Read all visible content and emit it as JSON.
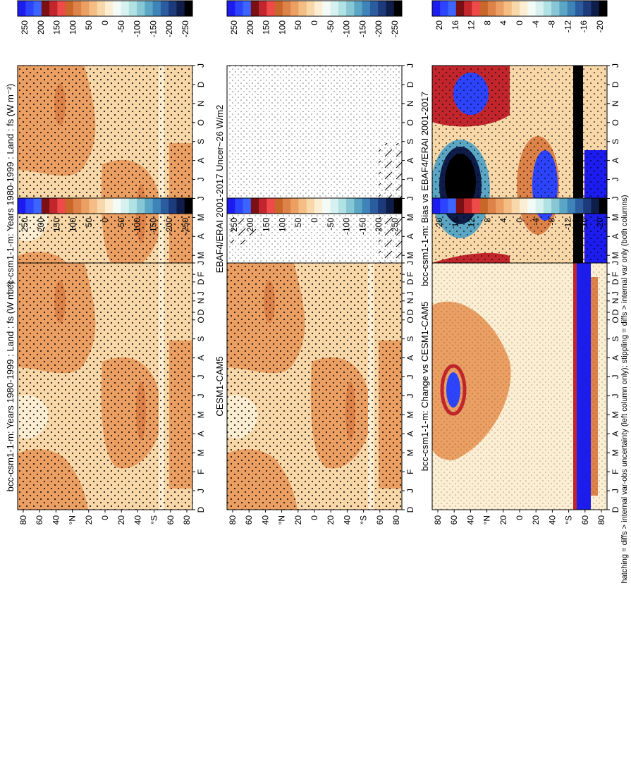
{
  "chart_data": {
    "type": "heatmap",
    "orientation_note": "figure rotated 90 degrees counter-clockwise",
    "month_ticks": [
      "D",
      "J",
      "F",
      "M",
      "A",
      "M",
      "J",
      "J",
      "A",
      "S",
      "O",
      "N",
      "D",
      "J"
    ],
    "lat_ticks": [
      "80",
      "60",
      "40",
      "°N",
      "20",
      "0",
      "20",
      "40",
      "°S",
      "60",
      "80"
    ],
    "footer": "hatching = diffs > internal var-obs uncertainty (left column only); stippling = diffs > internal var only (both columns)",
    "panels": [
      {
        "id": "obs-main",
        "title": "bcc-csm1-1-m: Years 1980-1999 : Land : fs (W m⁻²)",
        "kind": "flux",
        "colorbar": "flux"
      },
      {
        "id": "ref-main",
        "title": "bcc-csm1-1-m: Years 1980-1999 : Land : fs (W m⁻²)",
        "kind": "flux",
        "colorbar": "flux"
      },
      {
        "id": "obs-unc",
        "title": "EBAF4/ERAI 2001-2017 Uncer~26 W/m2",
        "kind": "blank",
        "colorbar": "flux"
      },
      {
        "id": "ref-cesm",
        "title": "CESM1-CAM5",
        "kind": "flux",
        "colorbar": "flux"
      },
      {
        "id": "obs-bias",
        "title": "bcc-csm1-1-m: Bias vs EBAF4/ERAI 2001-2017",
        "kind": "bias",
        "colorbar": "diff"
      },
      {
        "id": "ref-change",
        "title": "bcc-csm1-1-m: Change vs CESM1-CAM5",
        "kind": "change",
        "colorbar": "diff"
      }
    ],
    "colorbars": {
      "flux": {
        "labels": [
          "250",
          "200",
          "150",
          "100",
          "50",
          "0",
          "-50",
          "-100",
          "-150",
          "-200",
          "-250"
        ],
        "colors": [
          "#1c1cf0",
          "#2c44ff",
          "#3c64ff",
          "#7a0f14",
          "#c2262c",
          "#ef4a4a",
          "#c9672a",
          "#dd8248",
          "#eb9f62",
          "#f4bd84",
          "#f8d7a8",
          "#fbeed2",
          "#f4fbf7",
          "#d6f1ef",
          "#b0e1e3",
          "#87c6d4",
          "#5ba6c4",
          "#3f84b8",
          "#2b5c9f",
          "#1d3b7a",
          "#0f1d4a",
          "#000000"
        ]
      },
      "diff": {
        "labels": [
          "20",
          "16",
          "12",
          "8",
          "4",
          "0",
          "-4",
          "-8",
          "-12",
          "-16",
          "-20"
        ],
        "colors": [
          "#1c1cf0",
          "#2c44ff",
          "#3c64ff",
          "#7a0f14",
          "#c2262c",
          "#ef4a4a",
          "#c9672a",
          "#dd8248",
          "#eb9f62",
          "#f4bd84",
          "#f8d7a8",
          "#fbeed2",
          "#f4fbf7",
          "#d6f1ef",
          "#b0e1e3",
          "#87c6d4",
          "#5ba6c4",
          "#3f84b8",
          "#2b5c9f",
          "#1d3b7a",
          "#0f1d4a",
          "#000000"
        ]
      }
    }
  }
}
